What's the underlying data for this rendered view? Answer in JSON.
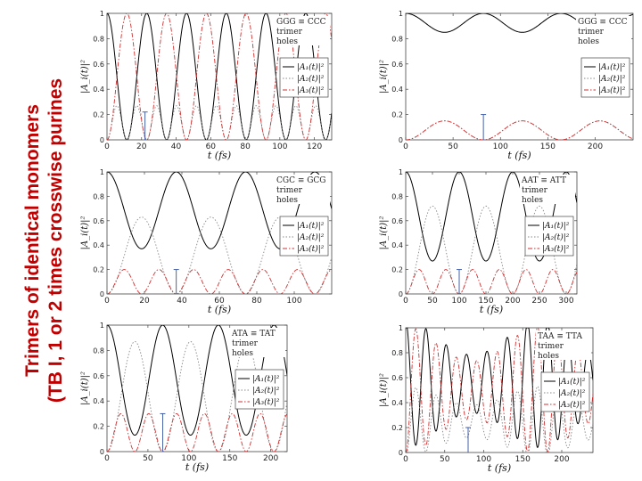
{
  "page": {
    "title_line1": "Trimers of identical monomers",
    "title_line2": "(TB I, 1 or 2 times crosswise purines",
    "title_color": "#C00000"
  },
  "chart_data": [
    {
      "type": "line",
      "ylabel": "|A_i(t)|²",
      "xlabel": "t (fs)",
      "xlim": [
        0,
        130
      ],
      "ylim": [
        0,
        1
      ],
      "xticks": [
        0,
        20,
        40,
        60,
        80,
        100,
        120
      ],
      "xtick_labels": [
        "0",
        "20",
        "40",
        "60",
        "80",
        "100",
        "120"
      ],
      "yticks": [
        0,
        0.2,
        0.4,
        0.6,
        0.8,
        1
      ],
      "ytick_labels": [
        "0",
        "0.2",
        "0.4",
        "0.6",
        "0.8",
        "1"
      ],
      "annotation": [
        "GGG ≡ CCC",
        "trimer",
        "holes"
      ],
      "legend_entries": [
        "|A₁(t)|²",
        "|A₂(t)|²",
        "|A₃(t)|²"
      ],
      "legend_position": "right",
      "series": [
        {
          "kind": "cos",
          "color": "#000000",
          "min": 0,
          "max": 1,
          "period": 23,
          "phase": 0,
          "dash": "solid"
        },
        {
          "kind": "cos",
          "color": "#888888",
          "min": 0,
          "max": 0.27,
          "period": 11.5,
          "phase": 5.75,
          "dash": "dotted"
        },
        {
          "kind": "cos",
          "color": "#D03030",
          "min": 0,
          "max": 1,
          "period": 23,
          "phase": 11.5,
          "dash": "dashdot"
        }
      ],
      "period_marker": {
        "x": 22,
        "y_from": 0,
        "y_to": 0.22
      }
    },
    {
      "type": "line",
      "ylabel": "|A_i(t)|²",
      "xlabel": "t (fs)",
      "xlim": [
        0,
        240
      ],
      "ylim": [
        0,
        1
      ],
      "xticks": [
        0,
        50,
        100,
        150,
        200
      ],
      "xtick_labels": [
        "0",
        "50",
        "100",
        "150",
        "200"
      ],
      "yticks": [
        0,
        0.2,
        0.4,
        0.6,
        0.8,
        1
      ],
      "ytick_labels": [
        "0",
        "0.2",
        "0.4",
        "0.6",
        "0.8",
        "1"
      ],
      "annotation": [
        "GGG ≡ CCC",
        "trimer",
        "holes"
      ],
      "legend_entries": [
        "|A₁(t)|²",
        "|A₂(t)|²",
        "|A₃(t)|²"
      ],
      "legend_position": "right",
      "series": [
        {
          "kind": "cos",
          "color": "#000000",
          "min": 0.85,
          "max": 1,
          "period": 82,
          "phase": 0,
          "dash": "solid"
        },
        {
          "kind": "cos",
          "color": "#888888",
          "min": 0,
          "max": 0.15,
          "period": 82,
          "phase": 41,
          "dash": "dotted"
        },
        {
          "kind": "cos",
          "color": "#D03030",
          "min": 0,
          "max": 0.15,
          "period": 82,
          "phase": 41,
          "dash": "dashdot"
        }
      ],
      "period_marker": {
        "x": 82,
        "y_from": 0,
        "y_to": 0.2
      }
    },
    {
      "type": "line",
      "ylabel": "|A_i(t)|²",
      "xlabel": "t (fs)",
      "xlim": [
        0,
        120
      ],
      "ylim": [
        0,
        1
      ],
      "xticks": [
        0,
        20,
        40,
        60,
        80,
        100
      ],
      "xtick_labels": [
        "0",
        "20",
        "40",
        "60",
        "80",
        "100"
      ],
      "yticks": [
        0,
        0.2,
        0.4,
        0.6,
        0.8,
        1
      ],
      "ytick_labels": [
        "0",
        "0.2",
        "0.4",
        "0.6",
        "0.8",
        "1"
      ],
      "annotation": [
        "CGC ≡ GCG",
        "trimer",
        "holes"
      ],
      "legend_entries": [
        "|A₁(t)|²",
        "|A₂(t)|²",
        "|A₃(t)|²"
      ],
      "legend_position": "right",
      "series": [
        {
          "kind": "cos",
          "color": "#000000",
          "min": 0.37,
          "max": 1,
          "period": 37,
          "phase": 0,
          "dash": "solid"
        },
        {
          "kind": "cos",
          "color": "#888888",
          "min": 0,
          "max": 0.63,
          "period": 37,
          "phase": 18.5,
          "dash": "dotted"
        },
        {
          "kind": "cos",
          "color": "#D03030",
          "min": 0,
          "max": 0.2,
          "period": 18.5,
          "phase": 9.25,
          "dash": "dashdot"
        }
      ],
      "period_marker": {
        "x": 37,
        "y_from": 0,
        "y_to": 0.2
      }
    },
    {
      "type": "line",
      "ylabel": "|A_i(t)|²",
      "xlabel": "t (fs)",
      "xlim": [
        0,
        320
      ],
      "ylim": [
        0,
        1
      ],
      "xticks": [
        0,
        50,
        100,
        150,
        200,
        250,
        300
      ],
      "xtick_labels": [
        "0",
        "50",
        "100",
        "150",
        "200",
        "250",
        "300"
      ],
      "yticks": [
        0,
        0.2,
        0.4,
        0.6,
        0.8,
        1
      ],
      "ytick_labels": [
        "0",
        "0.2",
        "0.4",
        "0.6",
        "0.8",
        "1"
      ],
      "annotation": [
        "AAT ≡ ATT",
        "trimer",
        "holes"
      ],
      "legend_entries": [
        "|A₁(t)|²",
        "|A₂(t)|²",
        "|A₃(t)|²"
      ],
      "legend_position": "right",
      "series": [
        {
          "kind": "cos",
          "color": "#000000",
          "min": 0.27,
          "max": 1,
          "period": 100,
          "phase": 0,
          "dash": "solid"
        },
        {
          "kind": "cos",
          "color": "#888888",
          "min": 0,
          "max": 0.72,
          "period": 100,
          "phase": 50,
          "dash": "dotted"
        },
        {
          "kind": "cos",
          "color": "#D03030",
          "min": 0,
          "max": 0.2,
          "period": 50,
          "phase": 25,
          "dash": "dashdot"
        }
      ],
      "period_marker": {
        "x": 100,
        "y_from": 0,
        "y_to": 0.2
      }
    },
    {
      "type": "line",
      "ylabel": "|A_i(t)|²",
      "xlabel": "t (fs)",
      "xlim": [
        0,
        220
      ],
      "ylim": [
        0,
        1
      ],
      "xticks": [
        0,
        50,
        100,
        150,
        200
      ],
      "xtick_labels": [
        "0",
        "50",
        "100",
        "150",
        "200"
      ],
      "yticks": [
        0,
        0.2,
        0.4,
        0.6,
        0.8,
        1
      ],
      "ytick_labels": [
        "0",
        "0.2",
        "0.4",
        "0.6",
        "0.8",
        "1"
      ],
      "annotation": [
        "ATA ≡ TAT",
        "trimer",
        "holes"
      ],
      "legend_entries": [
        "|A₁(t)|²",
        "|A₂(t)|²",
        "|A₃(t)|²"
      ],
      "legend_position": "right",
      "series": [
        {
          "kind": "cos",
          "color": "#000000",
          "min": 0.13,
          "max": 1,
          "period": 68,
          "phase": 0,
          "dash": "solid"
        },
        {
          "kind": "cos",
          "color": "#888888",
          "min": 0,
          "max": 0.87,
          "period": 68,
          "phase": 34,
          "dash": "dotted"
        },
        {
          "kind": "cos",
          "color": "#D03030",
          "min": 0,
          "max": 0.3,
          "period": 34,
          "phase": 17,
          "dash": "dashdot"
        }
      ],
      "period_marker": {
        "x": 68,
        "y_from": 0,
        "y_to": 0.3
      }
    },
    {
      "type": "line",
      "ylabel": "|A_i(t)|²",
      "xlabel": "t (fs)",
      "xlim": [
        0,
        240
      ],
      "ylim": [
        0,
        1
      ],
      "xticks": [
        0,
        50,
        100,
        150,
        200
      ],
      "xtick_labels": [
        "0",
        "50",
        "100",
        "150",
        "200"
      ],
      "yticks": [
        0,
        0.2,
        0.4,
        0.6,
        0.8,
        1
      ],
      "ytick_labels": [
        "0",
        "0.2",
        "0.4",
        "0.6",
        "0.8",
        "1"
      ],
      "annotation": [
        "TAA ≡ TTA",
        "trimer",
        "holes"
      ],
      "legend_entries": [
        "|A₁(t)|²",
        "|A₂(t)|²",
        "|A₃(t)|²"
      ],
      "legend_position": "right",
      "series": [
        {
          "kind": "wave",
          "color": "#000000",
          "period": 26,
          "envelope": 170,
          "offset": 0.55,
          "amp": 0.45,
          "env_amp": 0.2,
          "dash": "solid"
        },
        {
          "kind": "wave",
          "color": "#888888",
          "period": 26,
          "envelope": 170,
          "offset": 0.25,
          "amp": 0.25,
          "env_amp": 0.1,
          "dash": "dotted",
          "shift": 13
        },
        {
          "kind": "wave",
          "color": "#D03030",
          "period": 26,
          "envelope": 170,
          "offset": 0.5,
          "amp": 0.45,
          "env_amp": 0.2,
          "dash": "dashdot",
          "shift": 13
        }
      ],
      "period_marker": {
        "x": 80,
        "y_from": 0,
        "y_to": 0.2
      }
    }
  ]
}
